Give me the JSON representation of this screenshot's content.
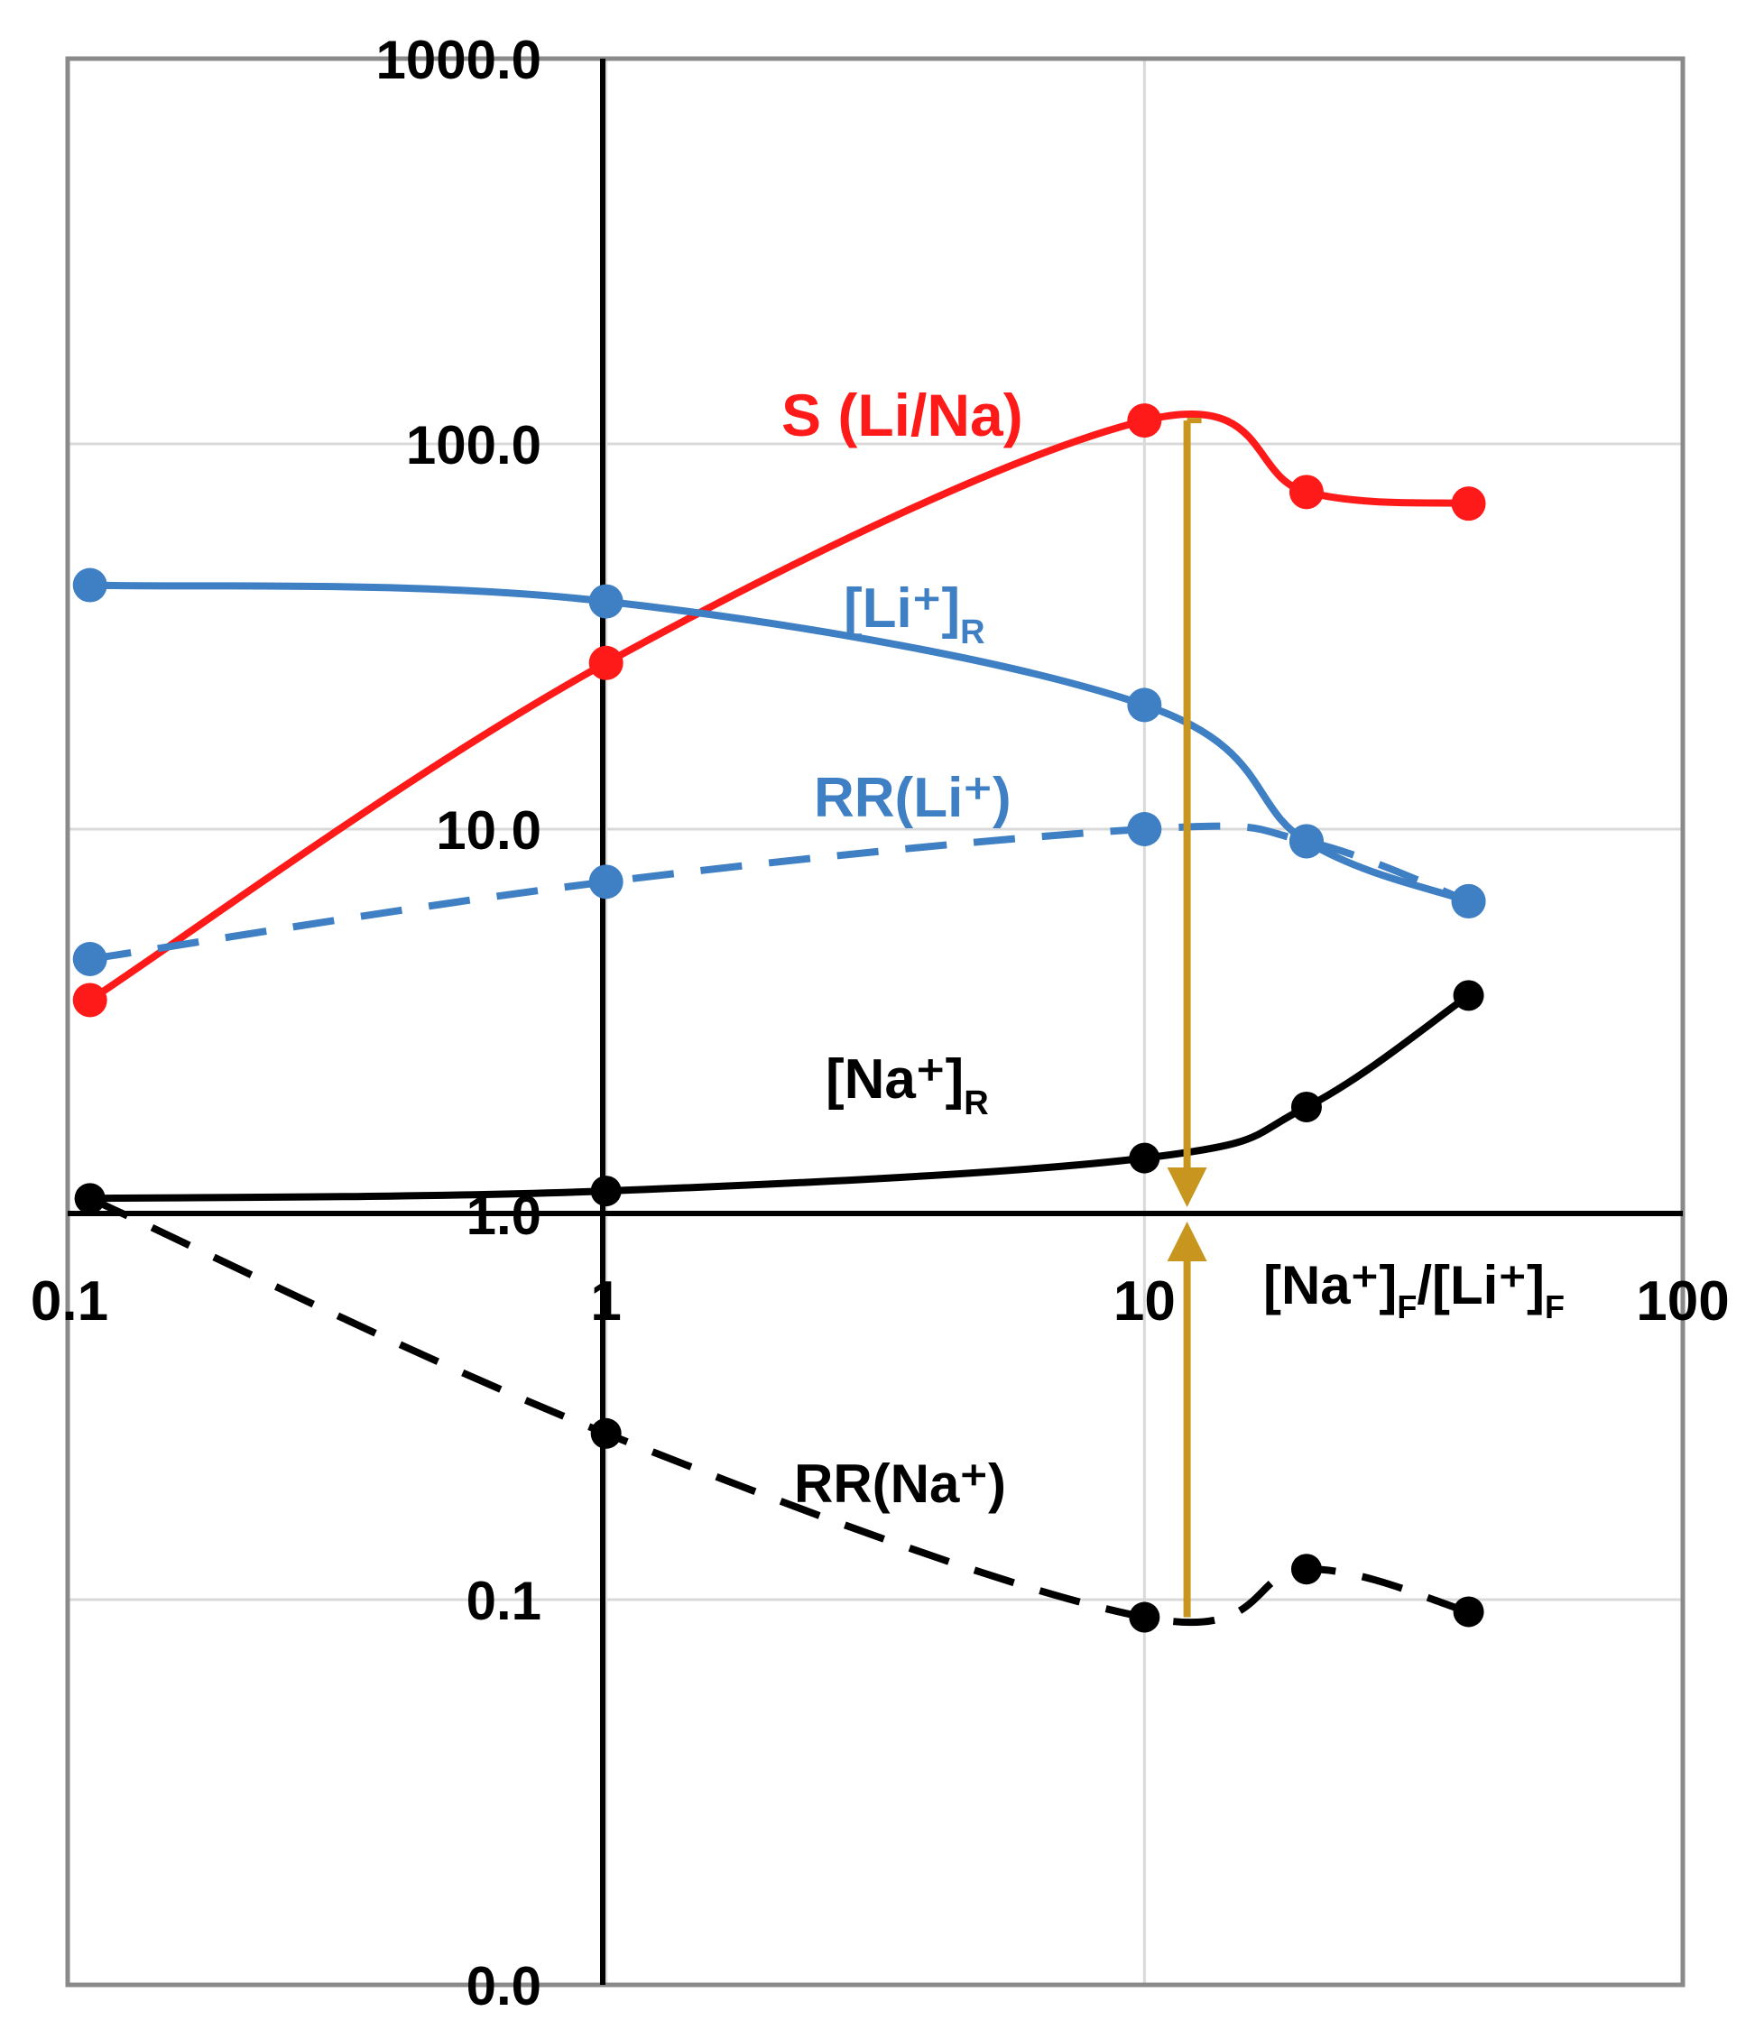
{
  "chart_data": {
    "type": "line",
    "x_scale": "log",
    "y_scale": "log",
    "xlim": [
      0.1,
      100
    ],
    "ylim": [
      0.01,
      1000
    ],
    "grid": true,
    "xlabel": {
      "main": "[Na⁺]",
      "sub1": "F",
      "slash": "/[Li⁺]",
      "sub2": "F"
    },
    "ylabel": "",
    "x_ticks": [
      {
        "value": 0.1,
        "label": "0.1"
      },
      {
        "value": 1,
        "label": "1"
      },
      {
        "value": 10,
        "label": "10"
      },
      {
        "value": 100,
        "label": "100"
      }
    ],
    "y_ticks": [
      {
        "value": 1000,
        "label": "1000.0"
      },
      {
        "value": 100,
        "label": "100.0"
      },
      {
        "value": 10,
        "label": "10.0"
      },
      {
        "value": 1,
        "label": "1.0"
      },
      {
        "value": 0.1,
        "label": "0.1"
      },
      {
        "value": 0.01,
        "label": "0.0"
      }
    ],
    "series": [
      {
        "key": "s_li_na",
        "name": "S (Li/Na)",
        "color": "#ff1a1a",
        "dashed": false,
        "x": [
          0.11,
          1,
          10,
          20,
          40
        ],
        "y": [
          3.6,
          27,
          115,
          75,
          70
        ]
      },
      {
        "key": "li_r",
        "name": "[Li⁺]",
        "name_sub": "R",
        "color": "#3f7fc4",
        "dashed": false,
        "x": [
          0.11,
          1,
          10,
          20,
          40
        ],
        "y": [
          43,
          39,
          21,
          9.3,
          6.5
        ]
      },
      {
        "key": "rr_li",
        "name": "RR(Li⁺)",
        "color": "#3f7fc4",
        "dashed": true,
        "x": [
          0.11,
          1,
          10,
          20,
          40
        ],
        "y": [
          4.6,
          7.3,
          10,
          9.3,
          6.5
        ]
      },
      {
        "key": "na_r",
        "name": "[Na⁺]",
        "name_sub": "R",
        "color": "#000000",
        "dashed": false,
        "x": [
          0.11,
          1,
          10,
          20,
          40
        ],
        "y": [
          1.1,
          1.15,
          1.4,
          1.9,
          3.7
        ]
      },
      {
        "key": "rr_na",
        "name": "RR(Na⁺)",
        "color": "#000000",
        "dashed": true,
        "x": [
          0.11,
          1,
          10,
          20,
          40
        ],
        "y": [
          1.1,
          0.27,
          0.09,
          0.12,
          0.093
        ]
      }
    ],
    "annotation_arrow": {
      "color": "#c8961e",
      "x": 12,
      "y_top": 115,
      "y_bottom": 0.09,
      "arrowheads_at": 1
    }
  }
}
